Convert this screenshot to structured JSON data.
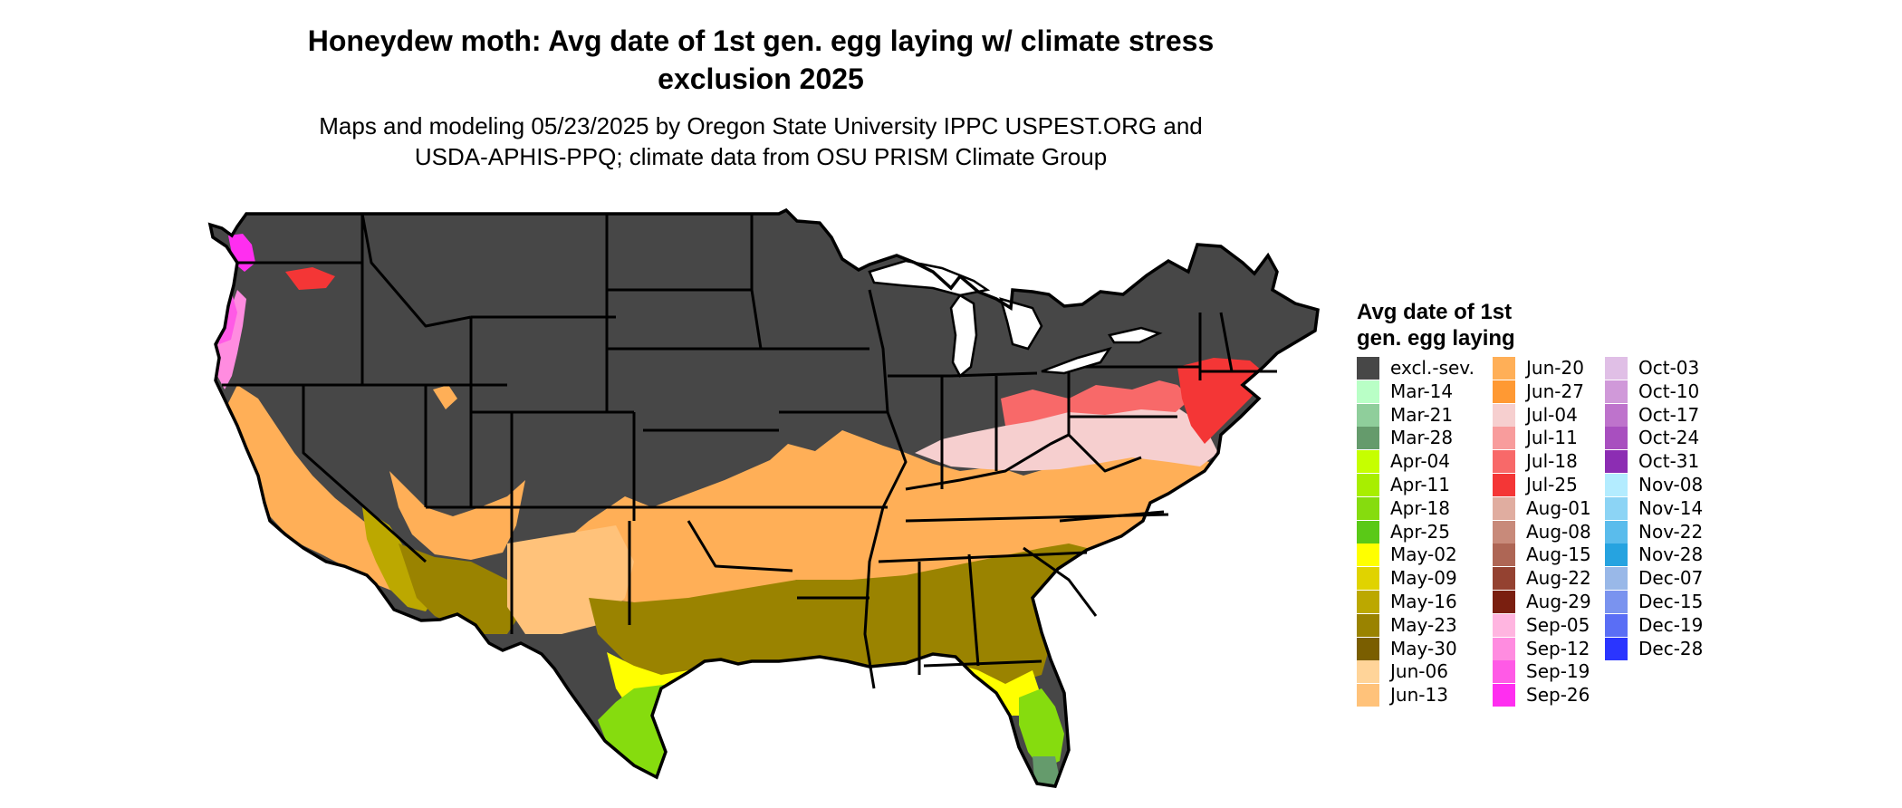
{
  "title": {
    "line1": "Honeydew moth: Avg date of 1st gen. egg laying w/ climate stress",
    "line2": "exclusion 2025"
  },
  "subtitle": {
    "line1": "Maps and modeling 05/23/2025 by Oregon State University IPPC USPEST.ORG and",
    "line2": "USDA-APHIS-PPQ; climate data from OSU PRISM Climate Group"
  },
  "legend": {
    "title_line1": "Avg date of 1st",
    "title_line2": "gen. egg laying",
    "items": [
      {
        "label": "excl.-sev.",
        "color": "#474747"
      },
      {
        "label": "Mar-14",
        "color": "#b9ffc6"
      },
      {
        "label": "Mar-21",
        "color": "#8fce9b"
      },
      {
        "label": "Mar-28",
        "color": "#659b6c"
      },
      {
        "label": "Apr-04",
        "color": "#c6ff00"
      },
      {
        "label": "Apr-11",
        "color": "#a8ee00"
      },
      {
        "label": "Apr-18",
        "color": "#86dc0e"
      },
      {
        "label": "Apr-25",
        "color": "#5ac917"
      },
      {
        "label": "May-02",
        "color": "#ffff00"
      },
      {
        "label": "May-09",
        "color": "#e0d300"
      },
      {
        "label": "May-16",
        "color": "#bca800"
      },
      {
        "label": "May-23",
        "color": "#9a8300"
      },
      {
        "label": "May-30",
        "color": "#7a5e00"
      },
      {
        "label": "Jun-06",
        "color": "#ffd499"
      },
      {
        "label": "Jun-13",
        "color": "#ffc27a"
      },
      {
        "label": "Jun-20",
        "color": "#ffaf57"
      },
      {
        "label": "Jun-27",
        "color": "#ff9933"
      },
      {
        "label": "Jul-04",
        "color": "#f6cfcf"
      },
      {
        "label": "Jul-11",
        "color": "#f89c9c"
      },
      {
        "label": "Jul-18",
        "color": "#f86969"
      },
      {
        "label": "Jul-25",
        "color": "#f43636"
      },
      {
        "label": "Aug-01",
        "color": "#e0ada0"
      },
      {
        "label": "Aug-08",
        "color": "#c88a7a"
      },
      {
        "label": "Aug-15",
        "color": "#ae6655"
      },
      {
        "label": "Aug-22",
        "color": "#944231"
      },
      {
        "label": "Aug-29",
        "color": "#7a1f10"
      },
      {
        "label": "Sep-05",
        "color": "#ffb5e0"
      },
      {
        "label": "Sep-12",
        "color": "#ff8ce0"
      },
      {
        "label": "Sep-19",
        "color": "#ff5ae6"
      },
      {
        "label": "Sep-26",
        "color": "#ff2ef0"
      },
      {
        "label": "Oct-03",
        "color": "#e0bfe6"
      },
      {
        "label": "Oct-10",
        "color": "#d099d9"
      },
      {
        "label": "Oct-17",
        "color": "#be73cc"
      },
      {
        "label": "Oct-24",
        "color": "#a84fbf"
      },
      {
        "label": "Oct-31",
        "color": "#8c2db3"
      },
      {
        "label": "Nov-08",
        "color": "#b3ecff"
      },
      {
        "label": "Nov-14",
        "color": "#8cd4f5"
      },
      {
        "label": "Nov-22",
        "color": "#5abcec"
      },
      {
        "label": "Nov-28",
        "color": "#26a3e0"
      },
      {
        "label": "Dec-07",
        "color": "#99b8e8"
      },
      {
        "label": "Dec-15",
        "color": "#7a93ef"
      },
      {
        "label": "Dec-19",
        "color": "#5a6ef5"
      },
      {
        "label": "Dec-28",
        "color": "#2a35ff"
      }
    ]
  },
  "map": {
    "background_color": "#474747",
    "border_color": "#000000",
    "zones": [
      {
        "name": "pacific-coast",
        "legend_label": "Sep-12"
      },
      {
        "name": "california-valley",
        "legend_label": "Jun-20"
      },
      {
        "name": "desert-southwest",
        "legend_label": "May-16"
      },
      {
        "name": "central-band",
        "legend_label": "Jun-20"
      },
      {
        "name": "ohio-valley",
        "legend_label": "Jul-04"
      },
      {
        "name": "northeast-fringe",
        "legend_label": "Jul-18"
      },
      {
        "name": "southeast",
        "legend_label": "May-23"
      },
      {
        "name": "gulf-coast",
        "legend_label": "May-02"
      },
      {
        "name": "south-texas",
        "legend_label": "Apr-18"
      },
      {
        "name": "south-florida",
        "legend_label": "Mar-28"
      }
    ]
  }
}
